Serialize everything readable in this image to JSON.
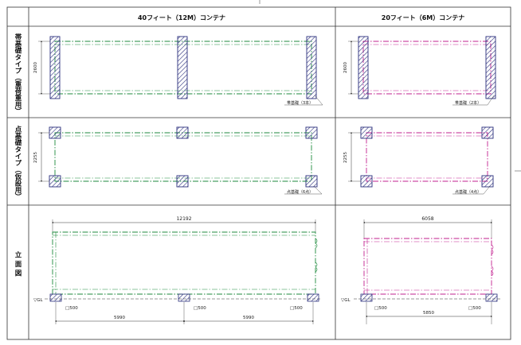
{
  "headers": {
    "col40": "40フィート（12M）コンテナ",
    "col20": "20フィート（6M）コンテナ"
  },
  "row_labels": {
    "strip": "帯基礎タイプ（重荷重用）",
    "point": "点基礎タイプ（仮設用）",
    "elevation": "立 面 図"
  },
  "strip_40": {
    "dim_height": "2600",
    "note": "帯基礎（3本）"
  },
  "strip_20": {
    "dim_height": "2600",
    "note": "帯基礎（2本）"
  },
  "point_40": {
    "dim_height": "2255",
    "note": "点基礎（6点）"
  },
  "point_20": {
    "dim_height": "2255",
    "note": "点基礎（4点）"
  },
  "elev_40": {
    "dim_total": "12192",
    "gl": "▽GL",
    "found_labels": [
      "□500",
      "□500",
      "□500"
    ],
    "spans": [
      "5990",
      "5990"
    ]
  },
  "elev_20": {
    "dim_total": "6058",
    "gl": "▽GL",
    "found_labels": [
      "□500",
      "□500"
    ],
    "span": "5850"
  },
  "colors": {
    "green": "#1d8a3c",
    "magenta": "#c2208f",
    "navy": "#2b2f7c",
    "line": "#333333"
  }
}
